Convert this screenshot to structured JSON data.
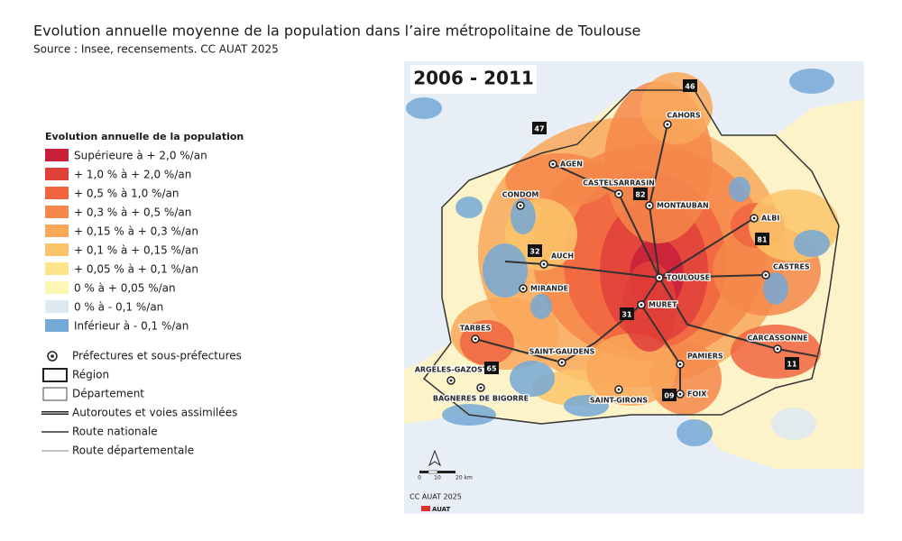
{
  "header": {
    "title": "Evolution annuelle moyenne de la population dans l’aire métropolitaine de Toulouse",
    "source": "Source : Insee, recensements. CC AUAT 2025"
  },
  "map": {
    "period": "2006 - 2011",
    "cities": [
      "CAHORS",
      "AGEN",
      "CASTELSARRASIN",
      "MONTAUBAN",
      "ALBI",
      "CONDOM",
      "AUCH",
      "TOULOUSE",
      "CASTRES",
      "MIRANDE",
      "MURET",
      "TARBES",
      "CARCASSONNE",
      "SAINT-GAUDENS",
      "PAMIERS",
      "ARGELES-GAZOST",
      "BAGNERES DE BIGORRE",
      "FOIX",
      "SAINT-GIRONS"
    ],
    "departments": [
      "46",
      "47",
      "82",
      "81",
      "32",
      "31",
      "65",
      "09",
      "11"
    ],
    "scale": [
      "0",
      "10",
      "20 km"
    ],
    "credit": "CC AUAT 2025",
    "logo": "AUAT"
  },
  "legend": {
    "title": "Evolution annuelle de la population",
    "classes": [
      {
        "label": "Supérieure à + 2,0 %/an",
        "color": "#c8203a"
      },
      {
        "label": "+ 1,0 % à + 2,0 %/an",
        "color": "#e0403a"
      },
      {
        "label": "+ 0,5 % à 1,0 %/an",
        "color": "#f06440"
      },
      {
        "label": "+ 0,3 % à + 0,5 %/an",
        "color": "#f5874a"
      },
      {
        "label": "+ 0,15 % à + 0,3 %/an",
        "color": "#f9a75a"
      },
      {
        "label": "+ 0,1 % à + 0,15 %/an",
        "color": "#fbc46a"
      },
      {
        "label": "+ 0,05 % à + 0,1 %/an",
        "color": "#fde38a"
      },
      {
        "label": "0 % à + 0,05 %/an",
        "color": "#fdf7b5"
      },
      {
        "label": "0 % à - 0,1 %/an",
        "color": "#dde8f3"
      },
      {
        "label": "Inférieur à - 0,1 %/an",
        "color": "#74a8d6"
      }
    ],
    "symbols": [
      "Préfectures et sous-préfectures",
      "Région",
      "Département",
      "Autoroutes et voies assimilées",
      "Route nationale",
      "Route départementale"
    ]
  }
}
